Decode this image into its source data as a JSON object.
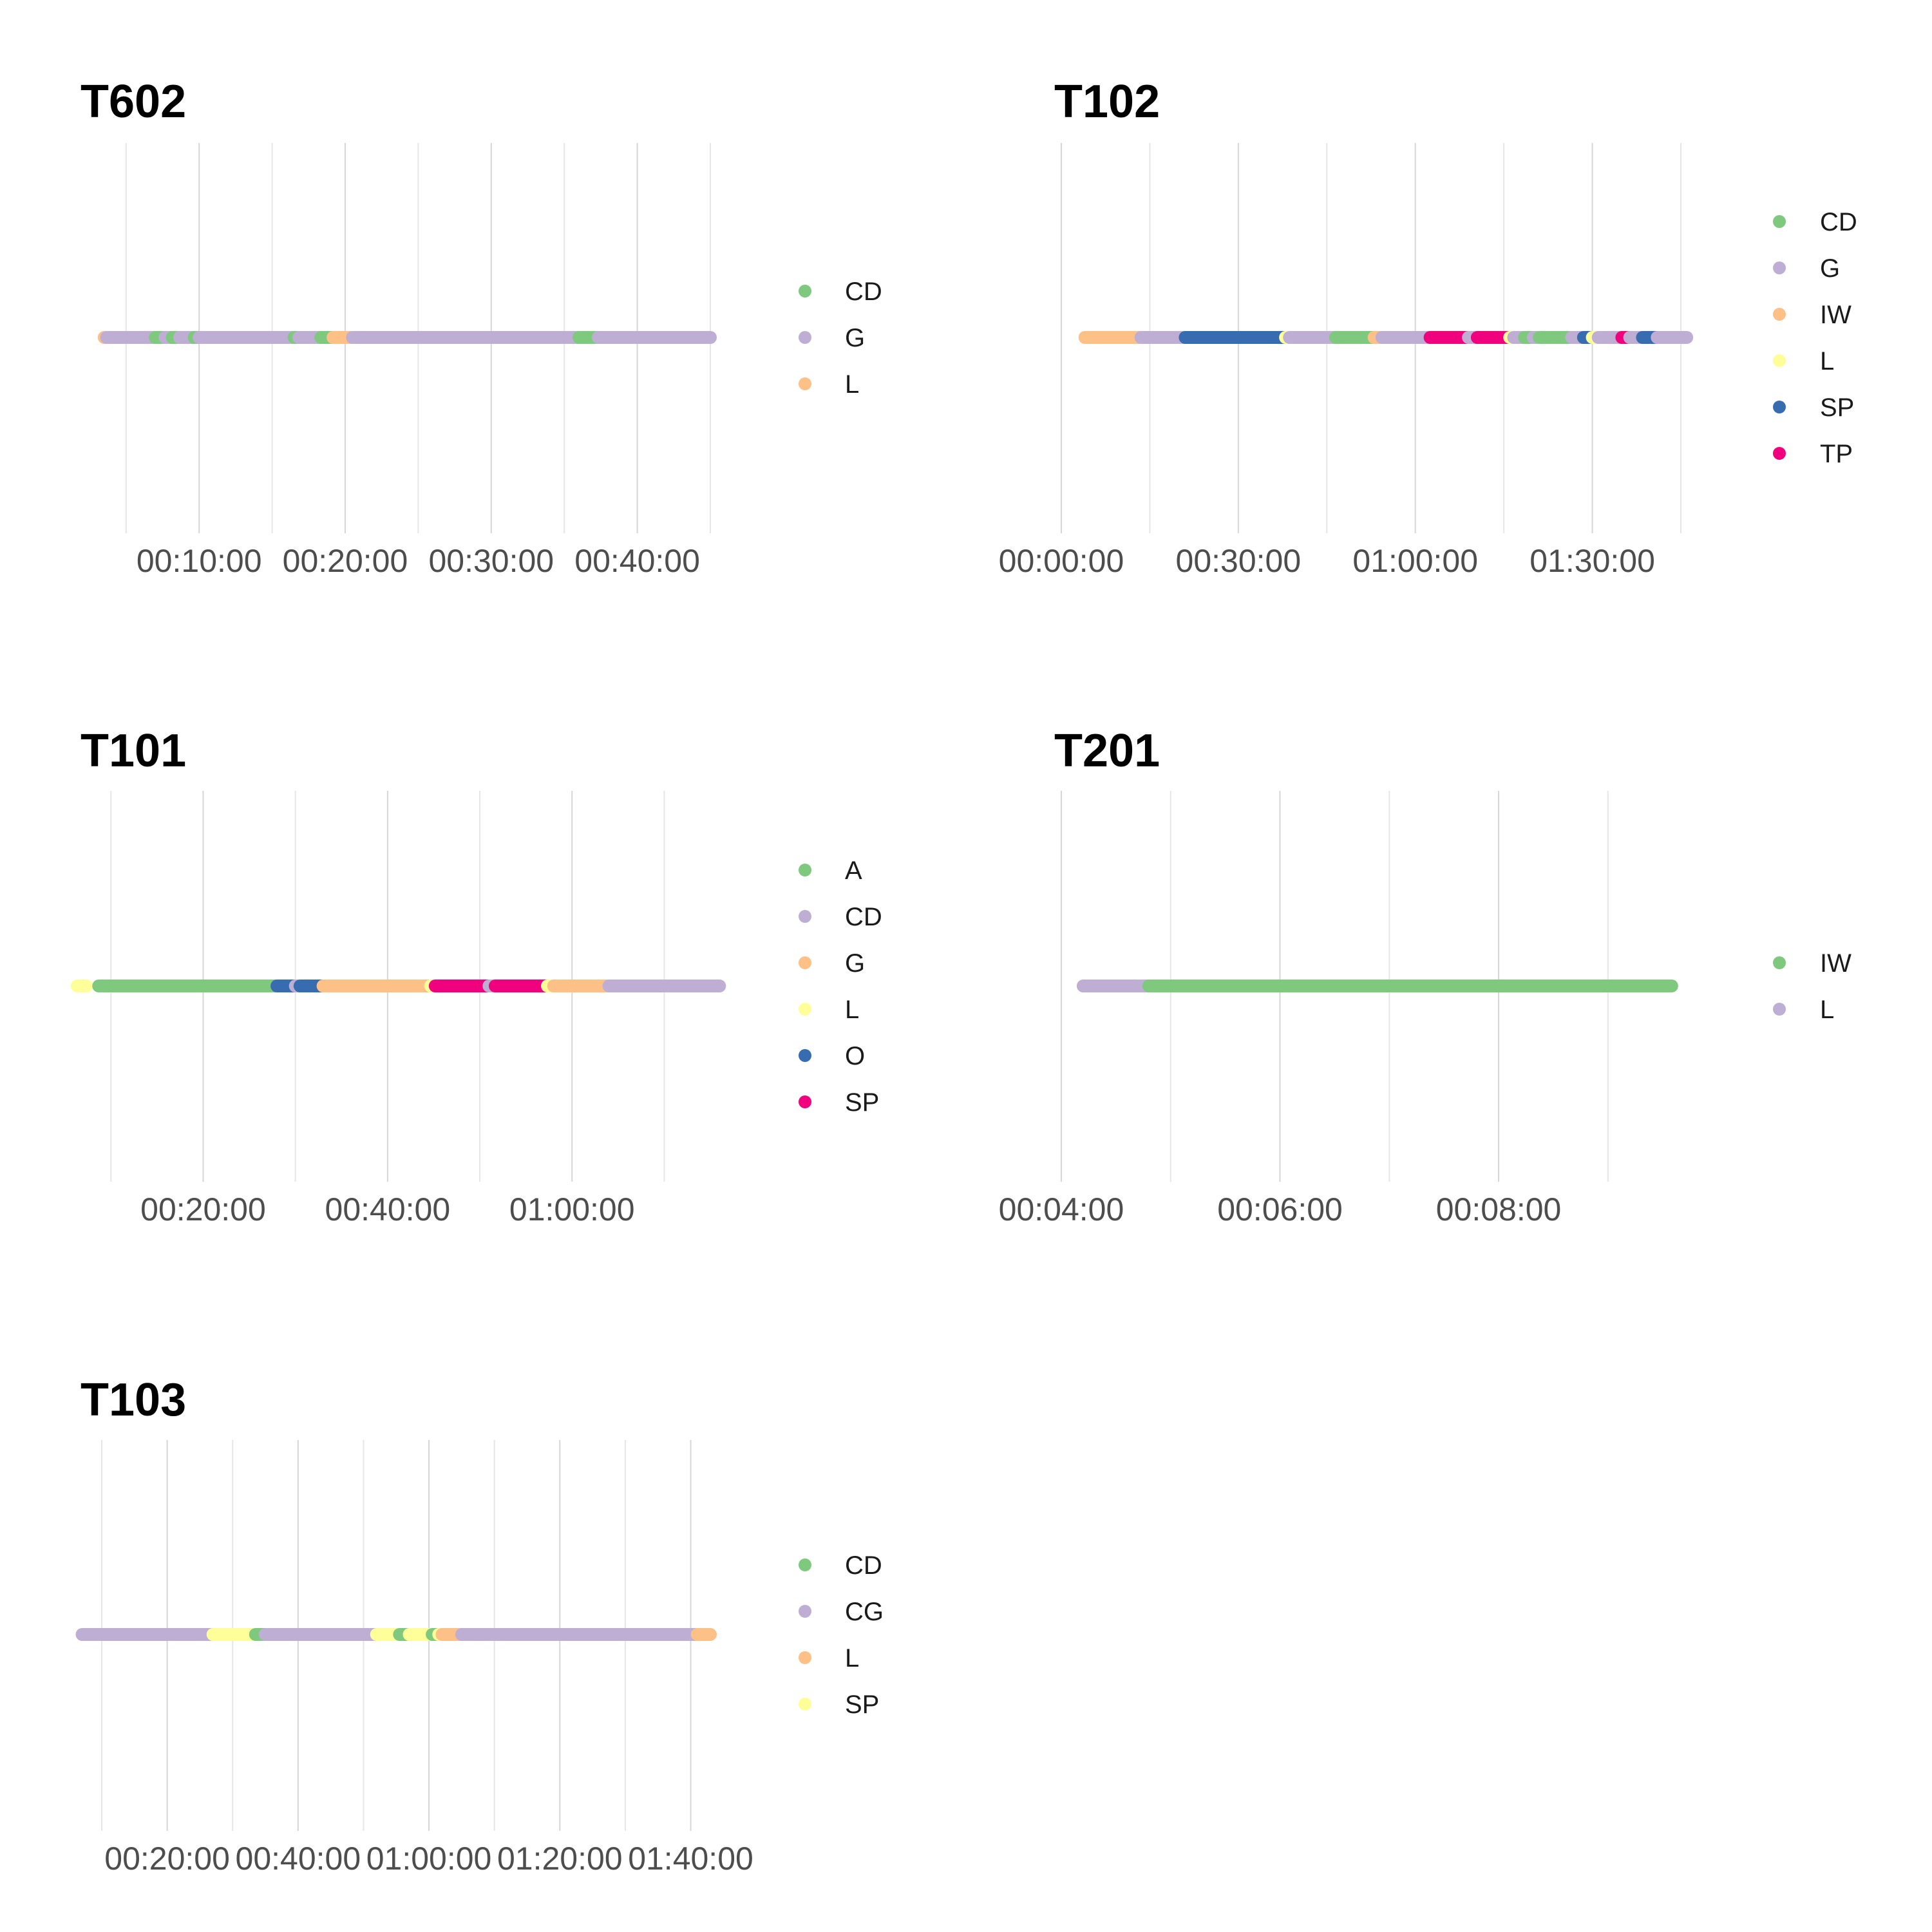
{
  "chart_data": [
    {
      "type": "timeline",
      "title": "T602",
      "x_ticks": [
        "00:10:00",
        "00:20:00",
        "00:30:00",
        "00:40:00"
      ],
      "xlim": [
        "00:03:20",
        "00:45:00"
      ],
      "legend": [
        {
          "label": "CD",
          "color": "#7fc97f"
        },
        {
          "label": "G",
          "color": "#beaed4"
        },
        {
          "label": "L",
          "color": "#fdc086"
        }
      ],
      "segments": [
        {
          "start": "00:03:30",
          "end": "00:03:40",
          "state": "L"
        },
        {
          "start": "00:03:40",
          "end": "00:07:00",
          "state": "G"
        },
        {
          "start": "00:07:00",
          "end": "00:07:40",
          "state": "CD"
        },
        {
          "start": "00:07:40",
          "end": "00:08:10",
          "state": "G"
        },
        {
          "start": "00:08:10",
          "end": "00:08:40",
          "state": "CD"
        },
        {
          "start": "00:08:40",
          "end": "00:09:40",
          "state": "G"
        },
        {
          "start": "00:09:40",
          "end": "00:10:00",
          "state": "CD"
        },
        {
          "start": "00:10:00",
          "end": "00:16:30",
          "state": "G"
        },
        {
          "start": "00:16:30",
          "end": "00:16:50",
          "state": "CD"
        },
        {
          "start": "00:16:50",
          "end": "00:18:20",
          "state": "G"
        },
        {
          "start": "00:18:20",
          "end": "00:19:10",
          "state": "CD"
        },
        {
          "start": "00:19:10",
          "end": "00:20:30",
          "state": "L"
        },
        {
          "start": "00:20:30",
          "end": "00:36:00",
          "state": "G"
        },
        {
          "start": "00:36:00",
          "end": "00:37:20",
          "state": "CD"
        },
        {
          "start": "00:37:20",
          "end": "00:45:00",
          "state": "G"
        }
      ]
    },
    {
      "type": "timeline",
      "title": "T102",
      "x_ticks": [
        "00:00:00",
        "00:30:00",
        "01:00:00",
        "01:30:00"
      ],
      "xlim": [
        "00:00:00",
        "01:45:00"
      ],
      "legend": [
        {
          "label": "CD",
          "color": "#7fc97f"
        },
        {
          "label": "G",
          "color": "#beaed4"
        },
        {
          "label": "IW",
          "color": "#fdc086"
        },
        {
          "label": "L",
          "color": "#ffff99"
        },
        {
          "label": "SP",
          "color": "#386cb0"
        },
        {
          "label": "TP",
          "color": "#f0027f"
        }
      ],
      "segments": [
        {
          "start": "00:04:00",
          "end": "00:13:30",
          "state": "IW"
        },
        {
          "start": "00:13:30",
          "end": "00:21:00",
          "state": "G"
        },
        {
          "start": "00:21:00",
          "end": "00:38:00",
          "state": "SP"
        },
        {
          "start": "00:38:00",
          "end": "00:38:40",
          "state": "L"
        },
        {
          "start": "00:38:40",
          "end": "00:46:30",
          "state": "G"
        },
        {
          "start": "00:46:30",
          "end": "00:53:00",
          "state": "CD"
        },
        {
          "start": "00:53:00",
          "end": "00:54:20",
          "state": "IW"
        },
        {
          "start": "00:54:20",
          "end": "01:02:30",
          "state": "G"
        },
        {
          "start": "01:02:30",
          "end": "01:09:00",
          "state": "TP"
        },
        {
          "start": "01:09:00",
          "end": "01:10:30",
          "state": "G"
        },
        {
          "start": "01:10:30",
          "end": "01:16:00",
          "state": "TP"
        },
        {
          "start": "01:16:00",
          "end": "01:16:40",
          "state": "L"
        },
        {
          "start": "01:16:40",
          "end": "01:18:30",
          "state": "G"
        },
        {
          "start": "01:18:30",
          "end": "01:20:00",
          "state": "CD"
        },
        {
          "start": "01:20:00",
          "end": "01:21:00",
          "state": "G"
        },
        {
          "start": "01:21:00",
          "end": "01:26:30",
          "state": "CD"
        },
        {
          "start": "01:26:30",
          "end": "01:28:30",
          "state": "G"
        },
        {
          "start": "01:28:30",
          "end": "01:30:00",
          "state": "SP"
        },
        {
          "start": "01:30:00",
          "end": "01:31:00",
          "state": "L"
        },
        {
          "start": "01:31:00",
          "end": "01:35:00",
          "state": "G"
        },
        {
          "start": "01:35:00",
          "end": "01:36:20",
          "state": "TP"
        },
        {
          "start": "01:36:20",
          "end": "01:38:30",
          "state": "G"
        },
        {
          "start": "01:38:30",
          "end": "01:41:00",
          "state": "SP"
        },
        {
          "start": "01:41:00",
          "end": "01:46:00",
          "state": "G"
        }
      ]
    },
    {
      "type": "timeline",
      "title": "T101",
      "x_ticks": [
        "00:20:00",
        "00:40:00",
        "01:00:00"
      ],
      "xlim": [
        "00:09:00",
        "01:15:00"
      ],
      "legend": [
        {
          "label": "A",
          "color": "#7fc97f"
        },
        {
          "label": "CD",
          "color": "#beaed4"
        },
        {
          "label": "G",
          "color": "#fdc086"
        },
        {
          "label": "L",
          "color": "#ffff99"
        },
        {
          "label": "O",
          "color": "#386cb0"
        },
        {
          "label": "SP",
          "color": "#f0027f"
        }
      ],
      "segments": [
        {
          "start": "00:06:20",
          "end": "00:07:20",
          "state": "L"
        },
        {
          "start": "00:08:40",
          "end": "00:28:00",
          "state": "A"
        },
        {
          "start": "00:28:00",
          "end": "00:30:00",
          "state": "O"
        },
        {
          "start": "00:30:00",
          "end": "00:30:30",
          "state": "CD"
        },
        {
          "start": "00:30:30",
          "end": "00:33:00",
          "state": "O"
        },
        {
          "start": "00:33:00",
          "end": "00:44:40",
          "state": "G"
        },
        {
          "start": "00:44:40",
          "end": "00:45:10",
          "state": "L"
        },
        {
          "start": "00:45:10",
          "end": "00:51:00",
          "state": "SP"
        },
        {
          "start": "00:51:00",
          "end": "00:51:40",
          "state": "CD"
        },
        {
          "start": "00:51:40",
          "end": "00:57:20",
          "state": "SP"
        },
        {
          "start": "00:57:20",
          "end": "00:58:00",
          "state": "L"
        },
        {
          "start": "00:58:00",
          "end": "01:04:00",
          "state": "G"
        },
        {
          "start": "01:04:00",
          "end": "01:16:00",
          "state": "CD"
        }
      ]
    },
    {
      "type": "timeline",
      "title": "T201",
      "x_ticks": [
        "00:04:00",
        "00:06:00",
        "00:08:00"
      ],
      "xlim": [
        "00:04:00",
        "00:09:40"
      ],
      "legend": [
        {
          "label": "IW",
          "color": "#7fc97f"
        },
        {
          "label": "L",
          "color": "#beaed4"
        }
      ],
      "segments": [
        {
          "start": "00:04:12",
          "end": "00:04:48",
          "state": "L"
        },
        {
          "start": "00:04:48",
          "end": "00:09:35",
          "state": "IW"
        }
      ]
    },
    {
      "type": "timeline",
      "title": "T103",
      "x_ticks": [
        "00:20:00",
        "00:40:00",
        "01:00:00",
        "01:20:00",
        "01:40:00"
      ],
      "xlim": [
        "00:10:00",
        "01:43:00"
      ],
      "legend": [
        {
          "label": "CD",
          "color": "#7fc97f"
        },
        {
          "label": "CG",
          "color": "#beaed4"
        },
        {
          "label": "L",
          "color": "#fdc086"
        },
        {
          "label": "SP",
          "color": "#ffff99"
        }
      ],
      "segments": [
        {
          "start": "00:07:00",
          "end": "00:27:00",
          "state": "CG"
        },
        {
          "start": "00:27:00",
          "end": "00:33:30",
          "state": "SP"
        },
        {
          "start": "00:33:30",
          "end": "00:35:00",
          "state": "CD"
        },
        {
          "start": "00:35:00",
          "end": "00:52:00",
          "state": "CG"
        },
        {
          "start": "00:52:00",
          "end": "00:55:30",
          "state": "SP"
        },
        {
          "start": "00:55:30",
          "end": "00:57:00",
          "state": "CD"
        },
        {
          "start": "00:57:00",
          "end": "01:00:30",
          "state": "SP"
        },
        {
          "start": "01:00:30",
          "end": "01:01:30",
          "state": "CD"
        },
        {
          "start": "01:01:30",
          "end": "01:02:00",
          "state": "SP"
        },
        {
          "start": "01:02:00",
          "end": "01:05:00",
          "state": "L"
        },
        {
          "start": "01:05:00",
          "end": "01:41:00",
          "state": "CG"
        },
        {
          "start": "01:41:00",
          "end": "01:43:00",
          "state": "L"
        }
      ]
    }
  ]
}
